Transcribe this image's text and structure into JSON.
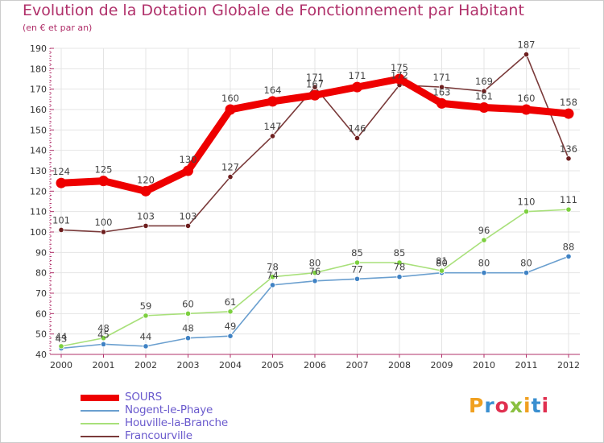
{
  "title": "Evolution de la Dotation Globale de Fonctionnement par Habitant",
  "subtitle": "(en € et par an)",
  "logo_text": "Proxiti",
  "colors": {
    "title": "#b0306a",
    "axis": "#b0306a",
    "grid": "#e4e4e4",
    "value_label": "#444444",
    "legend_label": "#6a5acd"
  },
  "chart_data": {
    "type": "line",
    "title": "Evolution de la Dotation Globale de Fonctionnement par Habitant",
    "subtitle": "(en € et par an)",
    "xlabel": "",
    "ylabel": "",
    "categories": [
      "2000",
      "2001",
      "2002",
      "2003",
      "2004",
      "2005",
      "2006",
      "2007",
      "2008",
      "2009",
      "2010",
      "2011",
      "2012"
    ],
    "ylim": [
      40,
      190
    ],
    "yticks": [
      40,
      50,
      60,
      70,
      80,
      90,
      100,
      110,
      120,
      130,
      140,
      150,
      160,
      170,
      180,
      190
    ],
    "grid": true,
    "legend_position": "bottom-left",
    "series": [
      {
        "name": "SOURS",
        "color": "#ee0000",
        "values": [
          124,
          125,
          120,
          130,
          160,
          164,
          167,
          171,
          175,
          163,
          161,
          160,
          158
        ],
        "labels": [
          "124",
          "125",
          "120",
          "130",
          "160",
          "164",
          "167",
          "171",
          "175",
          "163",
          "161",
          "160",
          "158"
        ]
      },
      {
        "name": "Nogent-le-Phaye",
        "color": "#6a9fcf",
        "point_color": "#3f82c4",
        "values": [
          43,
          45,
          44,
          48,
          49,
          74,
          76,
          77,
          78,
          80,
          80,
          80,
          88
        ],
        "labels": [
          "43",
          "45",
          "44",
          "48",
          "49",
          "74",
          "76",
          "77",
          "78",
          "80",
          "80",
          "80",
          "88"
        ]
      },
      {
        "name": "Houville-la-Branche",
        "color": "#a8e07a",
        "point_color": "#7ccf3f",
        "values": [
          44,
          48,
          59,
          60,
          61,
          78,
          80,
          85,
          85,
          81,
          96,
          110,
          111
        ],
        "labels": [
          "44",
          "48",
          "59",
          "60",
          "61",
          "78",
          "80",
          "85",
          "85",
          "81",
          "96",
          "110",
          "111"
        ]
      },
      {
        "name": "Francourville",
        "color": "#7a3a3a",
        "point_color": "#6e1f1f",
        "values": [
          101,
          100,
          103,
          103,
          127,
          147,
          171,
          146,
          172,
          171,
          169,
          187,
          136
        ],
        "labels": [
          "101",
          "100",
          "103",
          "103",
          "127",
          "147",
          "171",
          "146",
          "172",
          "171",
          "169",
          "187",
          "136"
        ]
      }
    ]
  }
}
